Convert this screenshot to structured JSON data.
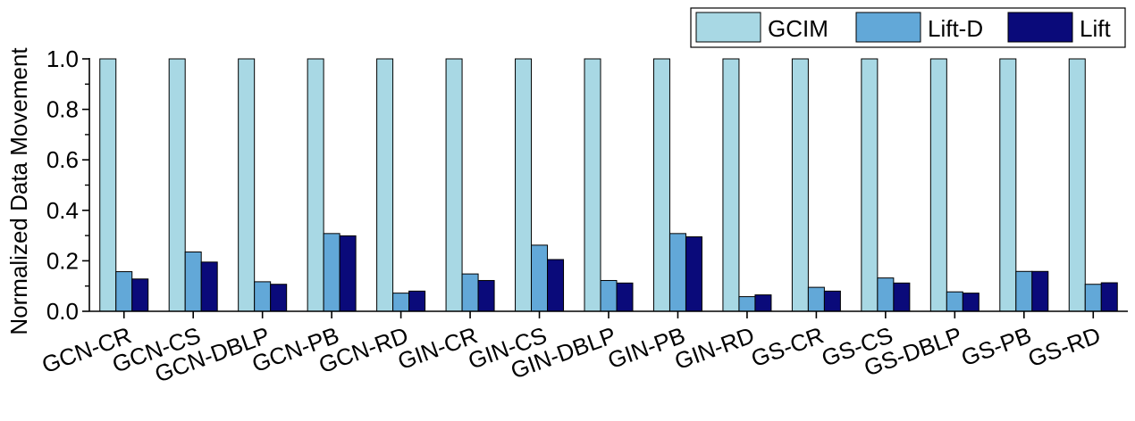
{
  "chart_data": {
    "type": "bar",
    "ylabel": "Normalized Data Movement",
    "ylim": [
      0,
      1.0
    ],
    "yticks": [
      "0.0",
      "0.2",
      "0.4",
      "0.6",
      "0.8",
      "1.0"
    ],
    "legend_position": "top-right",
    "categories": [
      "GCN-CR",
      "GCN-CS",
      "GCN-DBLP",
      "GCN-PB",
      "GCN-RD",
      "GIN-CR",
      "GIN-CS",
      "GIN-DBLP",
      "GIN-PB",
      "GIN-RD",
      "GS-CR",
      "GS-CS",
      "GS-DBLP",
      "GS-PB",
      "GS-RD"
    ],
    "series": [
      {
        "name": "GCIM",
        "color": "#a8d8e4",
        "values": [
          1.0,
          1.0,
          1.0,
          1.0,
          1.0,
          1.0,
          1.0,
          1.0,
          1.0,
          1.0,
          1.0,
          1.0,
          1.0,
          1.0,
          1.0
        ]
      },
      {
        "name": "Lift-D",
        "color": "#62a8d8",
        "values": [
          0.157,
          0.235,
          0.117,
          0.308,
          0.072,
          0.148,
          0.262,
          0.122,
          0.308,
          0.058,
          0.095,
          0.132,
          0.077,
          0.158,
          0.107
        ]
      },
      {
        "name": "Lift",
        "color": "#0a0a7a",
        "values": [
          0.128,
          0.195,
          0.107,
          0.299,
          0.08,
          0.122,
          0.205,
          0.112,
          0.295,
          0.065,
          0.08,
          0.112,
          0.072,
          0.158,
          0.113
        ]
      }
    ]
  }
}
